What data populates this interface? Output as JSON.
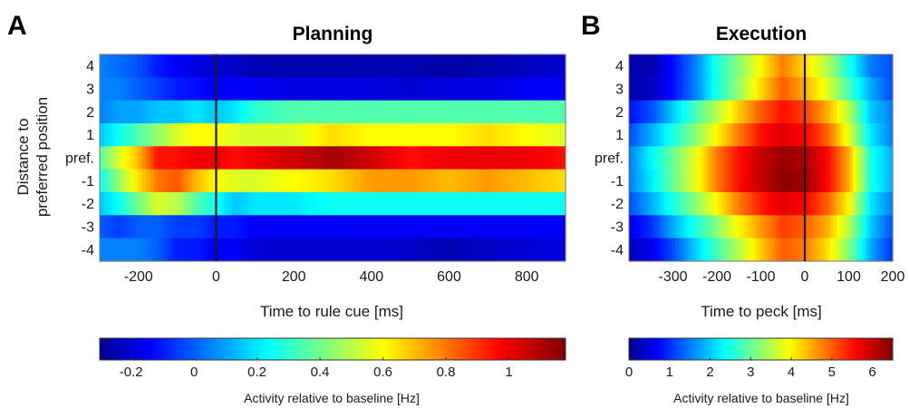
{
  "figure": {
    "panel_a_letter": "A",
    "panel_b_letter": "B",
    "shared_ylabel_line1": "Distance to",
    "shared_ylabel_line2": "preferred position"
  },
  "chart_data": [
    {
      "type": "heatmap",
      "panel": "A",
      "title": "Planning",
      "xlabel": "Time to rule cue [ms]",
      "xlim": [
        -300,
        900
      ],
      "xticks": [
        -200,
        0,
        200,
        400,
        600,
        800
      ],
      "xtick_labels": [
        "-200",
        "0",
        "200",
        "400",
        "600",
        "800"
      ],
      "rows": [
        "4",
        "3",
        "2",
        "1",
        "pref.",
        "-1",
        "-2",
        "-3",
        "-4"
      ],
      "event_line_x": 0,
      "x": [
        -300,
        -250,
        -200,
        -150,
        -100,
        -50,
        0,
        50,
        100,
        200,
        300,
        400,
        500,
        600,
        700,
        800,
        900
      ],
      "values": [
        [
          0.05,
          0.02,
          -0.02,
          -0.1,
          -0.15,
          -0.18,
          -0.2,
          -0.22,
          -0.25,
          -0.25,
          -0.25,
          -0.25,
          -0.25,
          -0.27,
          -0.25,
          -0.23,
          -0.2
        ],
        [
          0.05,
          0.05,
          0.0,
          -0.05,
          -0.1,
          -0.12,
          -0.15,
          -0.15,
          -0.15,
          -0.18,
          -0.18,
          -0.18,
          -0.2,
          -0.18,
          -0.18,
          -0.15,
          -0.15
        ],
        [
          0.05,
          0.1,
          0.1,
          0.15,
          0.15,
          0.2,
          0.15,
          0.2,
          0.3,
          0.35,
          0.35,
          0.35,
          0.35,
          0.35,
          0.35,
          0.35,
          0.35
        ],
        [
          0.15,
          0.25,
          0.35,
          0.45,
          0.55,
          0.6,
          0.6,
          0.55,
          0.55,
          0.55,
          0.65,
          0.6,
          0.6,
          0.6,
          0.65,
          0.6,
          0.55
        ],
        [
          0.35,
          0.55,
          0.7,
          0.95,
          0.95,
          1.0,
          1.0,
          0.95,
          1.0,
          1.05,
          1.12,
          1.05,
          0.95,
          1.0,
          1.0,
          1.0,
          0.95
        ],
        [
          0.25,
          0.45,
          0.65,
          0.8,
          0.85,
          0.7,
          0.6,
          0.55,
          0.55,
          0.6,
          0.65,
          0.75,
          0.75,
          0.7,
          0.75,
          0.7,
          0.65
        ],
        [
          0.15,
          0.25,
          0.4,
          0.55,
          0.5,
          0.35,
          0.25,
          0.15,
          0.2,
          0.2,
          0.25,
          0.25,
          0.25,
          0.25,
          0.25,
          0.25,
          0.25
        ],
        [
          0.0,
          -0.05,
          0.0,
          0.0,
          -0.05,
          -0.05,
          -0.1,
          -0.1,
          -0.15,
          -0.15,
          -0.15,
          -0.15,
          -0.15,
          -0.15,
          -0.15,
          -0.15,
          -0.15
        ],
        [
          0.05,
          0.05,
          0.05,
          0.0,
          -0.1,
          -0.1,
          -0.15,
          -0.15,
          -0.2,
          -0.2,
          -0.2,
          -0.2,
          -0.22,
          -0.25,
          -0.22,
          -0.2,
          -0.18
        ]
      ],
      "colorbar": {
        "range": [
          -0.3,
          1.18
        ],
        "ticks": [
          -0.2,
          0,
          0.2,
          0.4,
          0.6,
          0.8,
          1
        ],
        "tick_labels": [
          "-0.2",
          "0",
          "0.2",
          "0.4",
          "0.6",
          "0.8",
          "1"
        ],
        "label": "Activity relative to baseline [Hz]",
        "colormap": "jet"
      }
    },
    {
      "type": "heatmap",
      "panel": "B",
      "title": "Execution",
      "xlabel": "Time to peck [ms]",
      "xlim": [
        -400,
        200
      ],
      "xticks": [
        -300,
        -200,
        -100,
        0,
        100,
        200
      ],
      "xtick_labels": [
        "-300",
        "-200",
        "-100",
        "0",
        "100",
        "200"
      ],
      "rows": [
        "4",
        "3",
        "2",
        "1",
        "pref.",
        "-1",
        "-2",
        "-3",
        "-4"
      ],
      "event_line_x": 0,
      "x": [
        -400,
        -350,
        -300,
        -250,
        -200,
        -150,
        -100,
        -50,
        0,
        50,
        100,
        150,
        200
      ],
      "values": [
        [
          0.2,
          0.2,
          0.8,
          1.5,
          2.5,
          3.2,
          4.0,
          4.8,
          4.2,
          3.5,
          2.5,
          1.5,
          1.2
        ],
        [
          0.2,
          0.3,
          0.8,
          1.5,
          2.5,
          3.3,
          4.2,
          5.0,
          4.5,
          3.8,
          2.8,
          1.8,
          1.2
        ],
        [
          0.8,
          1.2,
          2.0,
          2.8,
          3.5,
          4.3,
          5.0,
          5.5,
          5.2,
          4.5,
          3.5,
          2.0,
          1.5
        ],
        [
          1.2,
          1.8,
          2.5,
          3.2,
          4.0,
          4.8,
          5.5,
          5.8,
          5.6,
          5.0,
          3.8,
          2.2,
          1.5
        ],
        [
          1.5,
          2.3,
          3.0,
          3.8,
          4.8,
          5.5,
          6.0,
          6.3,
          6.2,
          5.6,
          4.5,
          2.5,
          1.8
        ],
        [
          1.5,
          2.2,
          3.0,
          3.8,
          4.8,
          5.5,
          6.0,
          6.4,
          6.3,
          5.6,
          4.5,
          2.5,
          1.8
        ],
        [
          1.2,
          1.8,
          2.5,
          3.2,
          4.0,
          4.8,
          5.4,
          5.8,
          5.6,
          5.0,
          4.0,
          2.2,
          1.5
        ],
        [
          0.6,
          1.0,
          1.8,
          2.5,
          3.2,
          4.0,
          4.6,
          5.2,
          5.0,
          4.5,
          3.5,
          2.0,
          1.2
        ],
        [
          0.3,
          0.6,
          1.2,
          2.0,
          2.8,
          3.5,
          4.3,
          5.0,
          4.8,
          4.2,
          3.2,
          1.8,
          1.0
        ]
      ],
      "colorbar": {
        "range": [
          0,
          6.5
        ],
        "ticks": [
          0,
          1,
          2,
          3,
          4,
          5,
          6
        ],
        "tick_labels": [
          "0",
          "1",
          "2",
          "3",
          "4",
          "5",
          "6"
        ],
        "label": "Activity relative to baseline [Hz]",
        "colormap": "jet"
      }
    }
  ]
}
